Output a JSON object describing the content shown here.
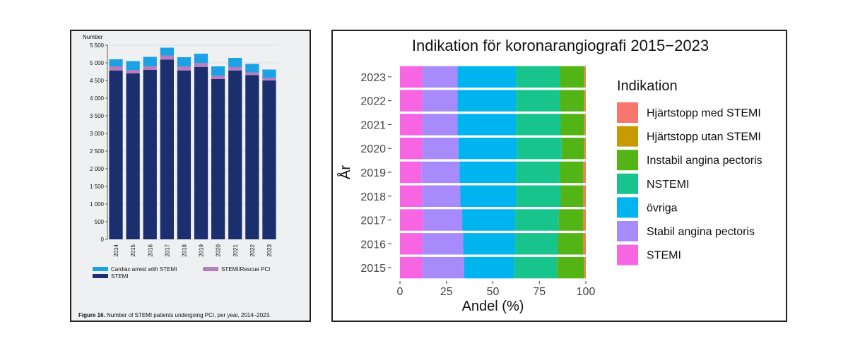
{
  "chart_data": [
    {
      "type": "bar",
      "stacked": true,
      "ylabel": "Number",
      "categories": [
        "2014",
        "2015",
        "2016",
        "2017",
        "2018",
        "2019",
        "2020",
        "2021",
        "2022",
        "2023"
      ],
      "series": [
        {
          "name": "STEMI",
          "color": "#1b2f6e",
          "values": [
            4780,
            4700,
            4800,
            5090,
            4780,
            4880,
            4540,
            4780,
            4650,
            4500
          ]
        },
        {
          "name": "STEMI/Rescue PCI",
          "color": "#b57fbf",
          "values": [
            120,
            100,
            100,
            120,
            120,
            120,
            100,
            100,
            80,
            80
          ]
        },
        {
          "name": "Cardiac arrest with STEMI",
          "color": "#1ca2e4",
          "values": [
            200,
            250,
            270,
            220,
            260,
            260,
            260,
            260,
            240,
            230
          ]
        }
      ],
      "ylim": [
        0,
        5500
      ],
      "yticks": [
        "0",
        "500",
        "1 000",
        "1 500",
        "2 000",
        "2 500",
        "3 000",
        "3 500",
        "4 000",
        "4 500",
        "5 000",
        "5 500"
      ],
      "grid": "horizontal",
      "legend_position": "bottom",
      "legend_items": [
        "Cardiac arrest with STEMI",
        "STEMI/Rescue PCI",
        "STEMI"
      ],
      "caption_label": "Figure 16.",
      "caption_text": " Number of STEMI patients undergoing PCI, per year, 2014–2023."
    },
    {
      "type": "bar",
      "orientation": "horizontal",
      "stacked": true,
      "title": "Indikation för koronarangiografi 2015−2023",
      "xlabel": "Andel (%)",
      "ylabel": "År",
      "categories": [
        "2015",
        "2016",
        "2017",
        "2018",
        "2019",
        "2020",
        "2021",
        "2022",
        "2023"
      ],
      "xlim": [
        0,
        100
      ],
      "xticks": [
        "0",
        "25",
        "50",
        "75",
        "100"
      ],
      "legend_title": "Indikation",
      "legend_position": "right",
      "series": [
        {
          "name": "STEMI",
          "color": "#f765e2",
          "values": [
            12,
            12,
            12.5,
            12,
            11.5,
            12,
            12,
            12,
            12
          ]
        },
        {
          "name": "Stabil angina pectoris",
          "color": "#a78bfa",
          "values": [
            22.5,
            22,
            21,
            20.5,
            20.5,
            19.5,
            19,
            19,
            19
          ]
        },
        {
          "name": "övriga",
          "color": "#00b4ef",
          "values": [
            27,
            28,
            28.5,
            30,
            30.5,
            31.5,
            31.5,
            31.5,
            31.5
          ]
        },
        {
          "name": "NSTEMI",
          "color": "#16c48c",
          "values": [
            23,
            23,
            23.5,
            24,
            23.5,
            24,
            24,
            23.5,
            23.5
          ]
        },
        {
          "name": "Instabil angina pectoris",
          "color": "#52b415",
          "values": [
            14.5,
            13.5,
            13,
            12,
            12.5,
            12,
            12.5,
            13,
            13
          ]
        },
        {
          "name": "Hjärtstopp utan STEMI",
          "color": "#c79a00",
          "values": [
            0.5,
            0.7,
            0.7,
            0.6,
            0.6,
            0.5,
            0.5,
            0.5,
            0.5
          ]
        },
        {
          "name": "Hjärtstopp med STEMI",
          "color": "#f8766d",
          "values": [
            0.5,
            0.8,
            0.8,
            0.9,
            0.9,
            0.5,
            0.5,
            0.5,
            0.5
          ]
        }
      ],
      "legend_items": [
        "Hjärtstopp med STEMI",
        "Hjärtstopp utan STEMI",
        "Instabil angina pectoris",
        "NSTEMI",
        "övriga",
        "Stabil angina pectoris",
        "STEMI"
      ]
    }
  ]
}
